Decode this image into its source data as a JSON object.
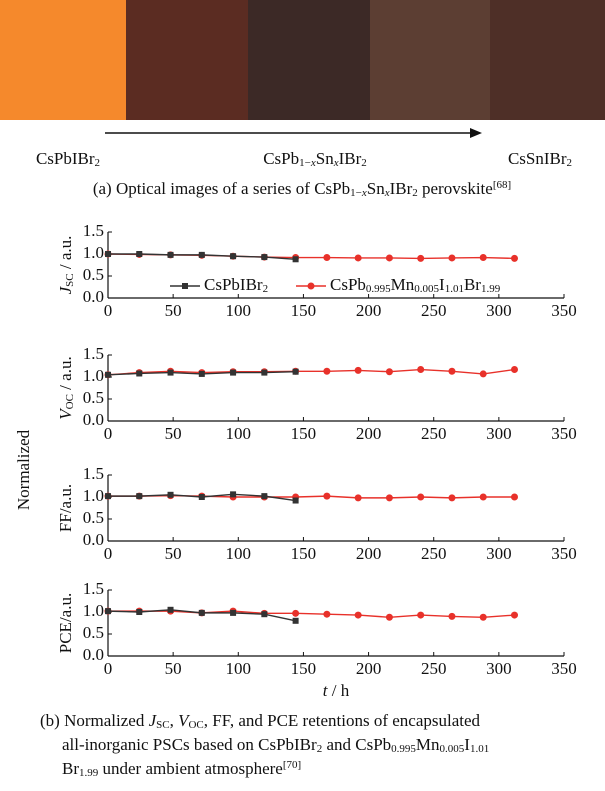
{
  "panel_a": {
    "labels": [
      [
        "CsPbIBr",
        {
          "text": "2",
          "style": "sub"
        }
      ],
      [
        "CsPb",
        {
          "text": "1−",
          "style": "sub"
        },
        {
          "text": "x",
          "style": "italic-sub"
        },
        "Sn",
        {
          "text": "x",
          "style": "italic-sub"
        },
        "IBr",
        {
          "text": "2",
          "style": "sub"
        }
      ],
      [
        "CsSnIBr",
        {
          "text": "2",
          "style": "sub"
        }
      ]
    ],
    "caption": [
      "(a) Optical images of a series of CsPb",
      {
        "text": "1−",
        "style": "sub"
      },
      {
        "text": "x",
        "style": "italic-sub"
      },
      "Sn",
      {
        "text": "x",
        "style": "italic-sub"
      },
      "IBr",
      {
        "text": "2",
        "style": "sub"
      },
      " perovskite",
      {
        "text": "[68]",
        "style": "sup"
      }
    ]
  },
  "shared_ylabel": "Normalized",
  "chart_data": [
    {
      "type": "line",
      "ylabel": [
        {
          "text": "J",
          "style": "italic"
        },
        {
          "text": "SC",
          "style": "sub"
        },
        " / a.u."
      ],
      "xlim": [
        0,
        350
      ],
      "xticks": [
        0,
        50,
        100,
        150,
        200,
        250,
        300,
        350
      ],
      "ylim": [
        0,
        1.5
      ],
      "yticks": [
        {
          "value": 0,
          "label": "0.0"
        },
        0.5,
        {
          "value": 1,
          "label": "1.0"
        },
        1.5
      ],
      "legend": "bottom",
      "series": [
        {
          "name": [
            "CsPbIBr",
            {
              "text": "2",
              "style": "sub"
            }
          ],
          "color": "#333333",
          "marker": "square",
          "x": [
            0,
            24,
            48,
            72,
            96,
            120,
            144
          ],
          "values": [
            1.0,
            1.0,
            0.98,
            0.98,
            0.95,
            0.93,
            0.88
          ]
        },
        {
          "name": [
            "CsPb",
            {
              "text": "0.995",
              "style": "sub"
            },
            "Mn",
            {
              "text": "0.005",
              "style": "sub"
            },
            "I",
            {
              "text": "1.01",
              "style": "sub"
            },
            "Br",
            {
              "text": "1.99",
              "style": "sub"
            }
          ],
          "color": "#e8312a",
          "marker": "circle",
          "x": [
            0,
            24,
            48,
            72,
            96,
            120,
            144,
            168,
            192,
            216,
            240,
            264,
            288,
            312
          ],
          "values": [
            1.0,
            0.99,
            0.98,
            0.97,
            0.95,
            0.93,
            0.92,
            0.92,
            0.91,
            0.91,
            0.9,
            0.91,
            0.92,
            0.9
          ]
        }
      ]
    },
    {
      "type": "line",
      "ylabel": [
        {
          "text": "V",
          "style": "italic"
        },
        {
          "text": "OC",
          "style": "sub"
        },
        " / a.u."
      ],
      "xlim": [
        0,
        350
      ],
      "xticks": [
        0,
        50,
        100,
        150,
        200,
        250,
        300,
        350
      ],
      "ylim": [
        0,
        1.5
      ],
      "yticks": [
        {
          "value": 0,
          "label": "0.0"
        },
        0.5,
        {
          "value": 1,
          "label": "1.0"
        },
        1.5
      ],
      "series": [
        {
          "color": "#333333",
          "marker": "square",
          "x": [
            0,
            24,
            48,
            72,
            96,
            120,
            144
          ],
          "values": [
            1.05,
            1.08,
            1.1,
            1.07,
            1.1,
            1.1,
            1.12
          ]
        },
        {
          "color": "#e8312a",
          "marker": "circle",
          "x": [
            0,
            24,
            48,
            72,
            96,
            120,
            144,
            168,
            192,
            216,
            240,
            264,
            288,
            312
          ],
          "values": [
            1.05,
            1.1,
            1.13,
            1.1,
            1.12,
            1.12,
            1.13,
            1.13,
            1.15,
            1.12,
            1.17,
            1.13,
            1.07,
            1.17
          ]
        }
      ]
    },
    {
      "type": "line",
      "ylabel": [
        "FF/a.u."
      ],
      "xlim": [
        0,
        350
      ],
      "xticks": [
        0,
        50,
        100,
        150,
        200,
        250,
        300,
        350
      ],
      "ylim": [
        0,
        1.5
      ],
      "yticks": [
        {
          "value": 0,
          "label": "0.0"
        },
        0.5,
        {
          "value": 1,
          "label": "1.0"
        },
        1.5
      ],
      "series": [
        {
          "color": "#333333",
          "marker": "square",
          "x": [
            0,
            24,
            48,
            72,
            96,
            120,
            144
          ],
          "values": [
            1.02,
            1.02,
            1.05,
            1.0,
            1.06,
            1.02,
            0.92
          ]
        },
        {
          "color": "#e8312a",
          "marker": "circle",
          "x": [
            0,
            24,
            48,
            72,
            96,
            120,
            144,
            168,
            192,
            216,
            240,
            264,
            288,
            312
          ],
          "values": [
            1.02,
            1.02,
            1.03,
            1.02,
            1.0,
            1.0,
            1.0,
            1.02,
            0.98,
            0.98,
            1.0,
            0.98,
            1.0,
            1.0
          ]
        }
      ]
    },
    {
      "type": "line",
      "ylabel": [
        "PCE/a.u."
      ],
      "xlabel": [
        {
          "text": "t",
          "style": "italic"
        },
        " / h"
      ],
      "xlim": [
        0,
        350
      ],
      "xticks": [
        0,
        50,
        100,
        150,
        200,
        250,
        300,
        350
      ],
      "ylim": [
        0,
        1.5
      ],
      "yticks": [
        {
          "value": 0,
          "label": "0.0"
        },
        0.5,
        {
          "value": 1,
          "label": "1.0"
        },
        1.5
      ],
      "series": [
        {
          "color": "#333333",
          "marker": "square",
          "x": [
            0,
            24,
            48,
            72,
            96,
            120,
            144
          ],
          "values": [
            1.02,
            1.0,
            1.05,
            0.98,
            0.98,
            0.95,
            0.8
          ]
        },
        {
          "color": "#e8312a",
          "marker": "circle",
          "x": [
            0,
            24,
            48,
            72,
            96,
            120,
            144,
            168,
            192,
            216,
            240,
            264,
            288,
            312
          ],
          "values": [
            1.02,
            1.02,
            1.02,
            0.98,
            1.02,
            0.97,
            0.97,
            0.95,
            0.93,
            0.88,
            0.93,
            0.9,
            0.88,
            0.93
          ]
        }
      ]
    }
  ],
  "caption_b": [
    [
      "(b) Normalized ",
      {
        "text": "J",
        "style": "italic"
      },
      {
        "text": "SC",
        "style": "sub"
      },
      ", ",
      {
        "text": "V",
        "style": "italic"
      },
      {
        "text": "OC",
        "style": "sub"
      },
      ", FF, and PCE retentions of encapsulated"
    ],
    [
      "all-inorganic PSCs based on CsPbIBr",
      {
        "text": "2",
        "style": "sub"
      },
      " and CsPb",
      {
        "text": "0.995",
        "style": "sub"
      },
      "Mn",
      {
        "text": "0.005",
        "style": "sub"
      },
      "I",
      {
        "text": "1.01",
        "style": "sub"
      }
    ],
    [
      "Br",
      {
        "text": "1.99",
        "style": "sub"
      },
      " under ambient atmosphere",
      {
        "text": "[70]",
        "style": "sup"
      }
    ]
  ]
}
